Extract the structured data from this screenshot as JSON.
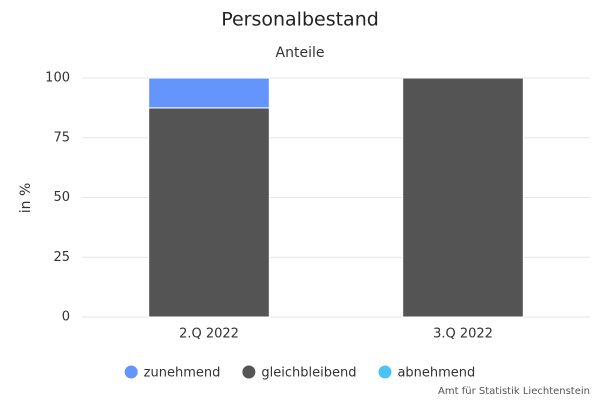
{
  "chart_data": {
    "type": "stacked-bar",
    "title": "Personalbestand",
    "subtitle": "Anteile",
    "y_label": "in %",
    "credit": "Amt für Statistik Liechtenstein",
    "categories": [
      "2.Q 2022",
      "3.Q 2022"
    ],
    "series": [
      {
        "name": "zunehmend",
        "color": "#6495fc",
        "values": [
          12.5,
          0
        ]
      },
      {
        "name": "gleichbleibend",
        "color": "#545454",
        "values": [
          87.5,
          100
        ]
      },
      {
        "name": "abnehmend",
        "color": "#4cc3f5",
        "values": [
          0,
          0
        ]
      }
    ],
    "ylim": [
      0,
      100
    ],
    "yticks": [
      0,
      25,
      50,
      75,
      100
    ],
    "grid": true
  }
}
